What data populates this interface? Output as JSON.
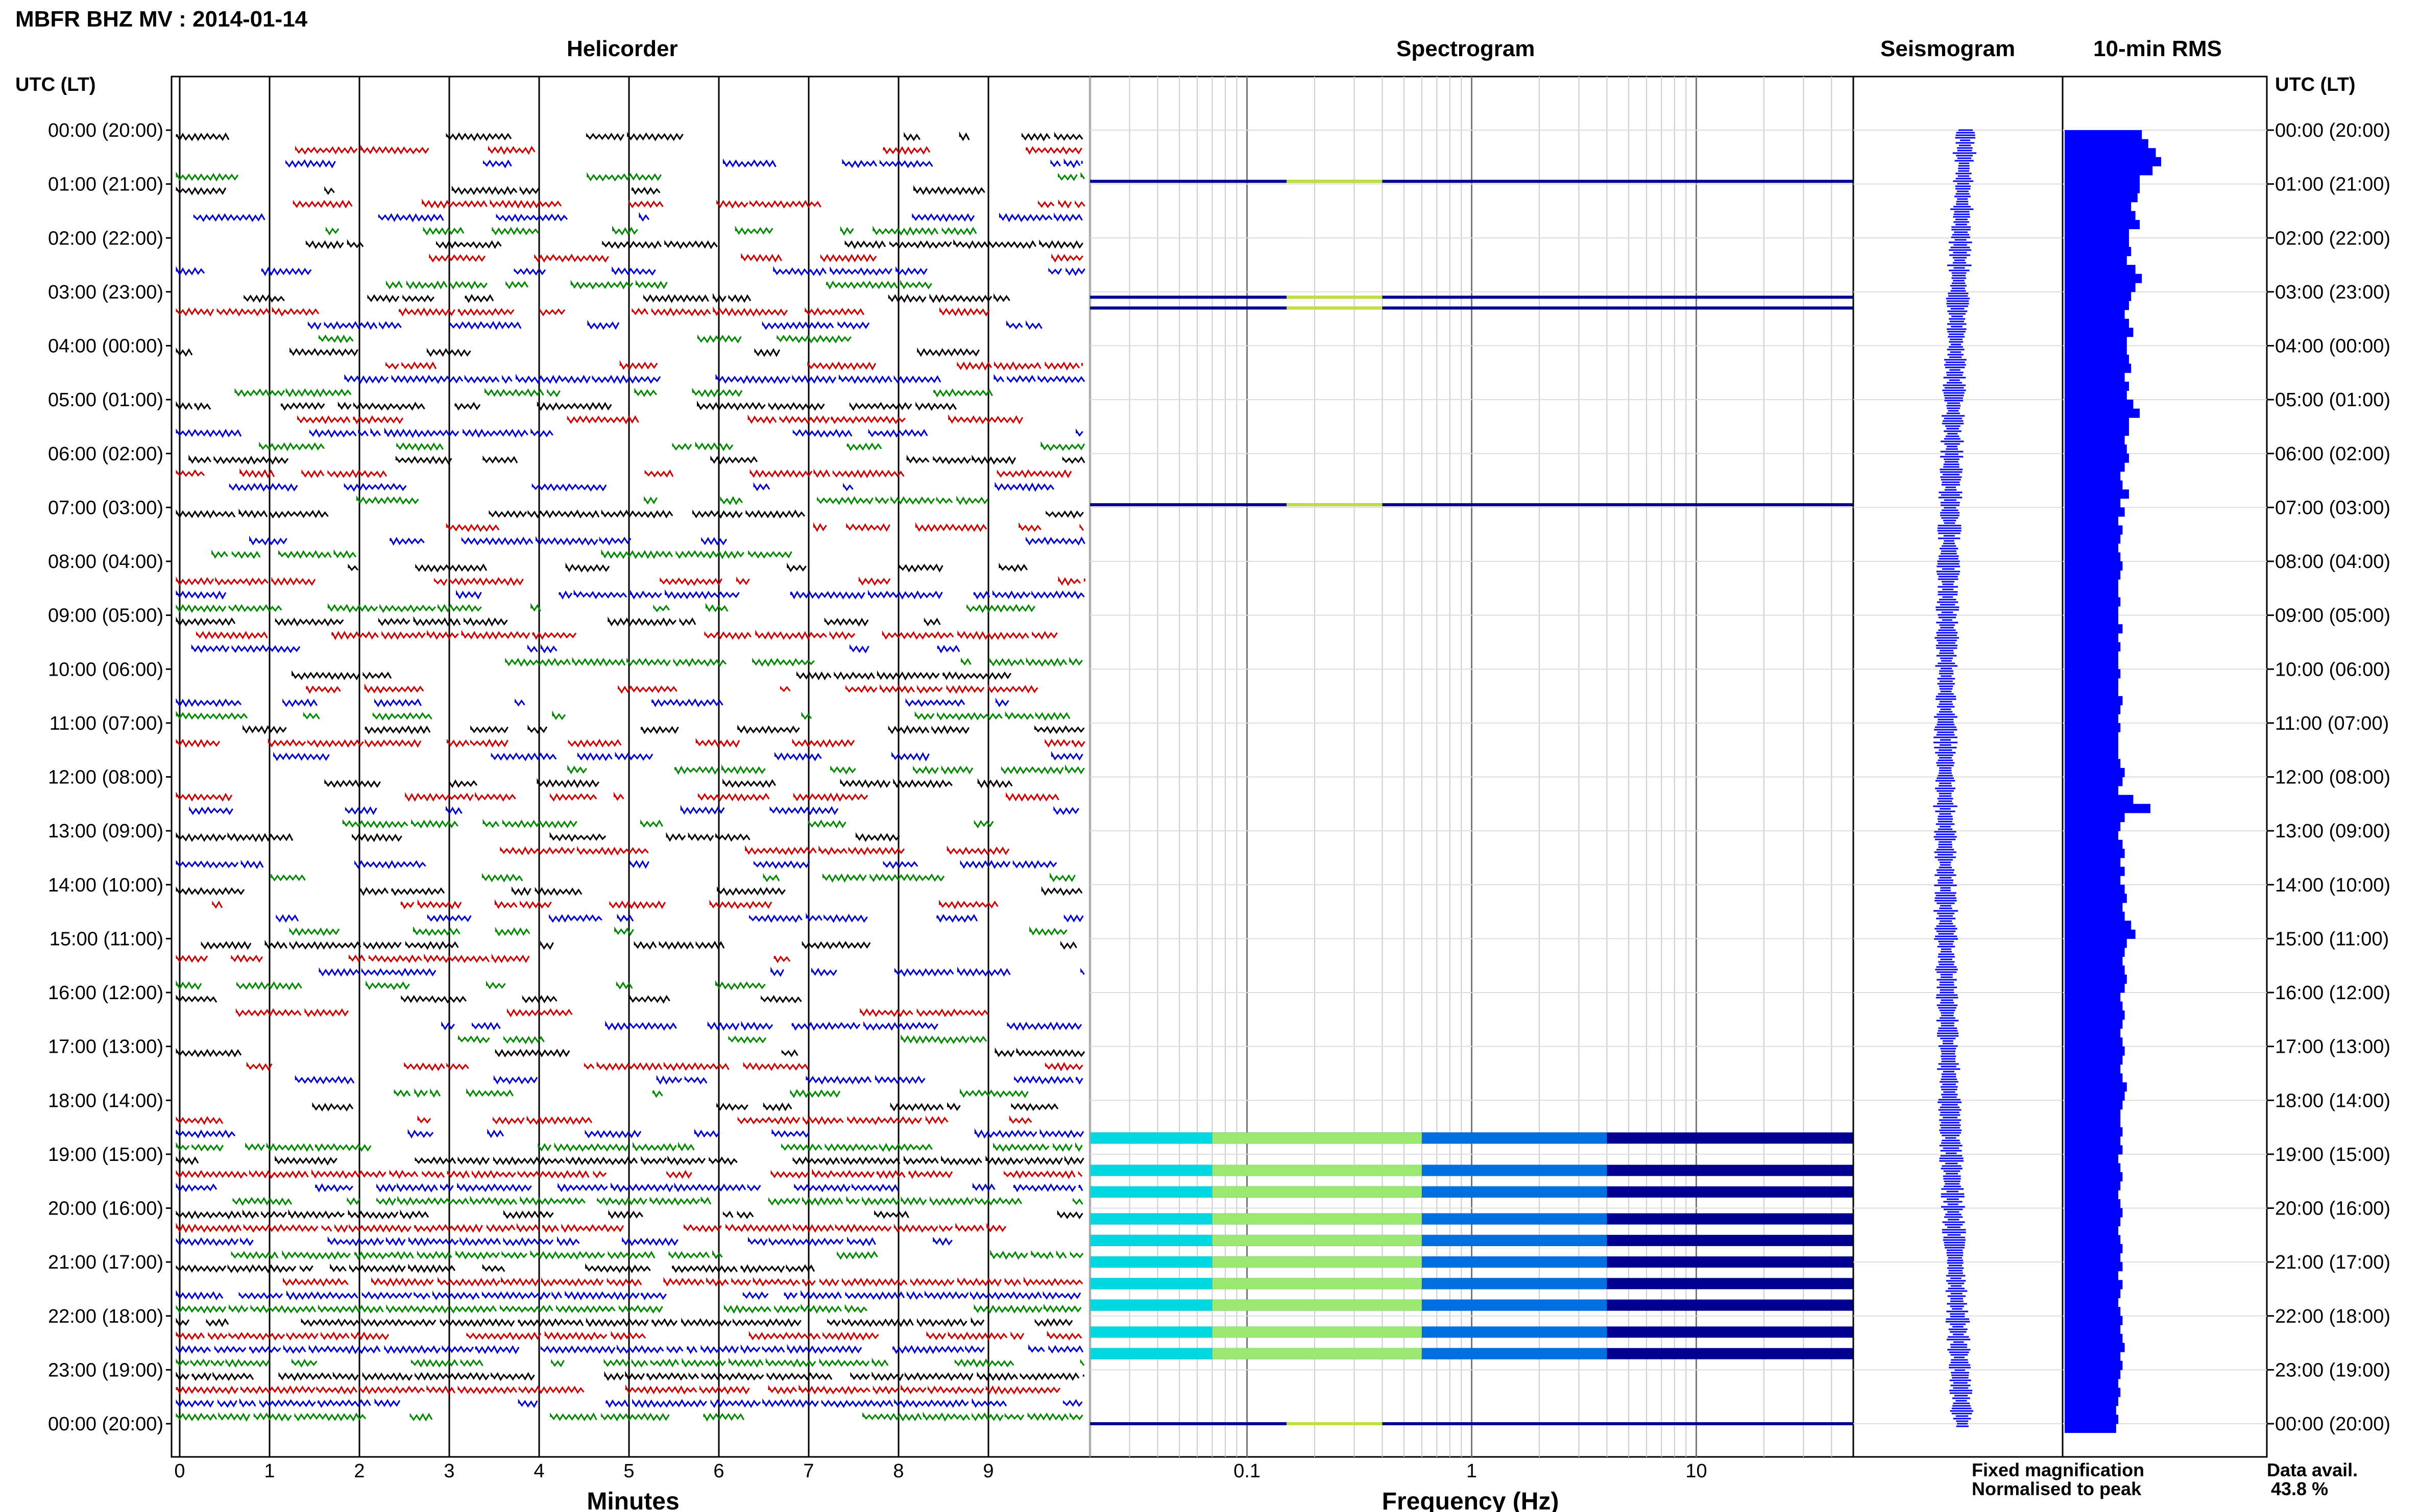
{
  "figure": {
    "title": "MBFR BHZ MV : 2014-01-14",
    "utc_header_left": "UTC (LT)",
    "utc_header_right": "UTC (LT)",
    "panels": {
      "helicorder": "Helicorder",
      "spectrogram": "Spectrogram",
      "seismogram": "Seismogram",
      "rms": "10-min RMS"
    },
    "axis_labels": {
      "minutes": "Minutes",
      "frequency": "Frequency (Hz)"
    },
    "legend": {
      "fixed": "Fixed magnification",
      "normalised": "Normalised to peak",
      "fixed_color": "#0000ff",
      "normalised_color": "#ff0000"
    },
    "data_avail": {
      "label": "Data avail.",
      "value": "43.8 %"
    }
  },
  "chart_data": {
    "type": "helicorder",
    "hour_labels": [
      "00:00 (20:00)",
      "01:00 (21:00)",
      "02:00 (22:00)",
      "03:00 (23:00)",
      "04:00 (00:00)",
      "05:00 (01:00)",
      "06:00 (02:00)",
      "07:00 (03:00)",
      "08:00 (04:00)",
      "09:00 (05:00)",
      "10:00 (06:00)",
      "11:00 (07:00)",
      "12:00 (08:00)",
      "13:00 (09:00)",
      "14:00 (10:00)",
      "15:00 (11:00)",
      "16:00 (12:00)",
      "17:00 (13:00)",
      "18:00 (14:00)",
      "19:00 (15:00)",
      "20:00 (16:00)",
      "21:00 (17:00)",
      "22:00 (18:00)",
      "23:00 (19:00)",
      "00:00 (20:00)"
    ],
    "minute_ticks": [
      "0",
      "1",
      "2",
      "3",
      "4",
      "5",
      "6",
      "7",
      "8",
      "9"
    ],
    "frequency_ticks": [
      "0.1",
      "1",
      "10"
    ],
    "frequency_range_hz": [
      0.02,
      50
    ],
    "frequency_scale": "log",
    "trace_colors": [
      "#000000",
      "#cc0000",
      "#0000cc",
      "#008800"
    ],
    "rms_color": "#0000ff",
    "spectrogram_active_hours": [
      0.95,
      3.1,
      3.3,
      6.95,
      18.7,
      19.3,
      19.7,
      20.2,
      20.6,
      21.0,
      21.4,
      21.8,
      22.3,
      22.7,
      24.0
    ],
    "rms_10min_relative": [
      0.72,
      0.78,
      0.85,
      0.9,
      0.82,
      0.7,
      0.7,
      0.68,
      0.62,
      0.66,
      0.7,
      0.6,
      0.6,
      0.62,
      0.58,
      0.66,
      0.72,
      0.66,
      0.62,
      0.6,
      0.56,
      0.6,
      0.64,
      0.58,
      0.58,
      0.6,
      0.62,
      0.56,
      0.6,
      0.58,
      0.64,
      0.7,
      0.6,
      0.6,
      0.56,
      0.58,
      0.6,
      0.56,
      0.52,
      0.54,
      0.6,
      0.52,
      0.56,
      0.5,
      0.54,
      0.52,
      0.5,
      0.52,
      0.54,
      0.52,
      0.5,
      0.5,
      0.52,
      0.5,
      0.5,
      0.54,
      0.5,
      0.52,
      0.5,
      0.5,
      0.52,
      0.5,
      0.5,
      0.54,
      0.52,
      0.5,
      0.52,
      0.5,
      0.5,
      0.5,
      0.52,
      0.56,
      0.54,
      0.5,
      0.64,
      0.8,
      0.56,
      0.52,
      0.5,
      0.54,
      0.56,
      0.52,
      0.56,
      0.52,
      0.56,
      0.58,
      0.54,
      0.56,
      0.62,
      0.66,
      0.58,
      0.56,
      0.54,
      0.56,
      0.58,
      0.56,
      0.52,
      0.54,
      0.56,
      0.54,
      0.52,
      0.54,
      0.56,
      0.54,
      0.52,
      0.54,
      0.58,
      0.56,
      0.54,
      0.52,
      0.52,
      0.54,
      0.52,
      0.54,
      0.5,
      0.52,
      0.54,
      0.52,
      0.5,
      0.52,
      0.54,
      0.52,
      0.5,
      0.52,
      0.54,
      0.52,
      0.54,
      0.5,
      0.54,
      0.52,
      0.5,
      0.52,
      0.54,
      0.52,
      0.54,
      0.56,
      0.52,
      0.54,
      0.52,
      0.5,
      0.52,
      0.5,
      0.48,
      0.5,
      0.48
    ]
  }
}
